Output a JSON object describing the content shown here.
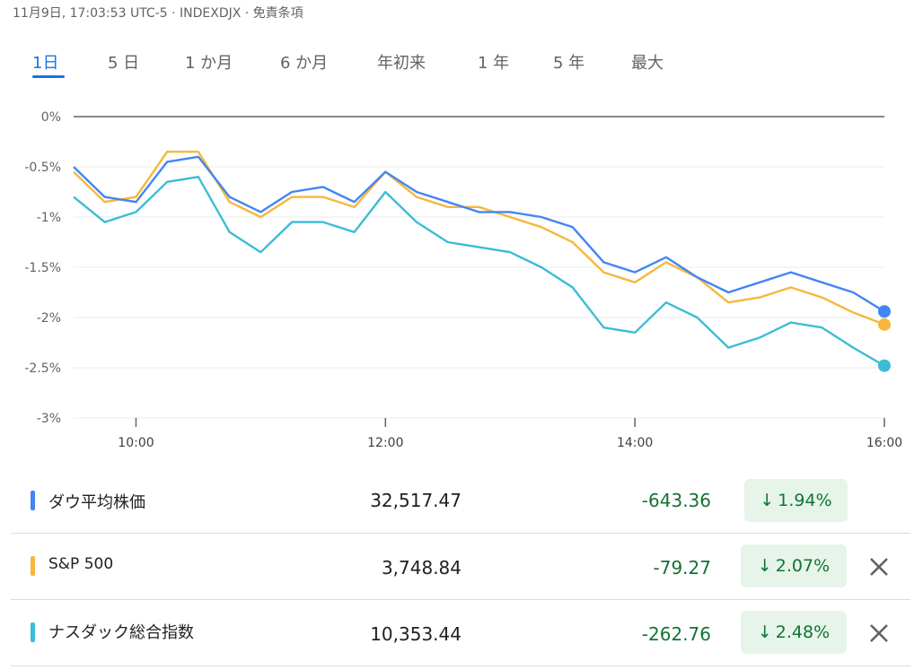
{
  "header": {
    "text": "11月9日, 17:03:53 UTC-5 · INDEXDJX · 免責条項"
  },
  "tabs": [
    {
      "label": "1日",
      "active": true
    },
    {
      "label": "5 日"
    },
    {
      "label": "1 か月"
    },
    {
      "label": "6 か月"
    },
    {
      "label": "年初来"
    },
    {
      "label": "1 年"
    },
    {
      "label": "5 年"
    },
    {
      "label": "最大"
    }
  ],
  "chart_data": {
    "type": "line",
    "y_ticks": [
      "0%",
      "-0.5%",
      "-1%",
      "-1.5%",
      "-2%",
      "-2.5%",
      "-3%"
    ],
    "ylim": [
      -3,
      0
    ],
    "x_ticks": [
      "10:00",
      "12:00",
      "14:00",
      "16:00"
    ],
    "xlim": [
      "09:30",
      "16:00"
    ],
    "grid": true,
    "series": [
      {
        "name": "ダウ平均株価",
        "color": "#4285f4",
        "x": [
          "09:30",
          "09:45",
          "10:00",
          "10:15",
          "10:30",
          "10:45",
          "11:00",
          "11:15",
          "11:30",
          "11:45",
          "12:00",
          "12:15",
          "12:30",
          "12:45",
          "13:00",
          "13:15",
          "13:30",
          "13:45",
          "14:00",
          "14:15",
          "14:30",
          "14:45",
          "15:00",
          "15:15",
          "15:30",
          "15:45",
          "16:00"
        ],
        "y": [
          -0.5,
          -0.8,
          -0.85,
          -0.45,
          -0.4,
          -0.8,
          -0.95,
          -0.75,
          -0.7,
          -0.85,
          -0.55,
          -0.75,
          -0.85,
          -0.95,
          -0.95,
          -1.0,
          -1.1,
          -1.45,
          -1.55,
          -1.4,
          -1.6,
          -1.75,
          -1.65,
          -1.55,
          -1.65,
          -1.75,
          -1.94
        ]
      },
      {
        "name": "S&P 500",
        "color": "#f6b73c",
        "x": [
          "09:30",
          "09:45",
          "10:00",
          "10:15",
          "10:30",
          "10:45",
          "11:00",
          "11:15",
          "11:30",
          "11:45",
          "12:00",
          "12:15",
          "12:30",
          "12:45",
          "13:00",
          "13:15",
          "13:30",
          "13:45",
          "14:00",
          "14:15",
          "14:30",
          "14:45",
          "15:00",
          "15:15",
          "15:30",
          "15:45",
          "16:00"
        ],
        "y": [
          -0.55,
          -0.85,
          -0.8,
          -0.35,
          -0.35,
          -0.85,
          -1.0,
          -0.8,
          -0.8,
          -0.9,
          -0.55,
          -0.8,
          -0.9,
          -0.9,
          -1.0,
          -1.1,
          -1.25,
          -1.55,
          -1.65,
          -1.45,
          -1.6,
          -1.85,
          -1.8,
          -1.7,
          -1.8,
          -1.95,
          -2.07
        ]
      },
      {
        "name": "ナスダック総合指数",
        "color": "#3cbcd6",
        "x": [
          "09:30",
          "09:45",
          "10:00",
          "10:15",
          "10:30",
          "10:45",
          "11:00",
          "11:15",
          "11:30",
          "11:45",
          "12:00",
          "12:15",
          "12:30",
          "12:45",
          "13:00",
          "13:15",
          "13:30",
          "13:45",
          "14:00",
          "14:15",
          "14:30",
          "14:45",
          "15:00",
          "15:15",
          "15:30",
          "15:45",
          "16:00"
        ],
        "y": [
          -0.8,
          -1.05,
          -0.95,
          -0.65,
          -0.6,
          -1.15,
          -1.35,
          -1.05,
          -1.05,
          -1.15,
          -0.75,
          -1.05,
          -1.25,
          -1.3,
          -1.35,
          -1.5,
          -1.7,
          -2.1,
          -2.15,
          -1.85,
          -2.0,
          -2.3,
          -2.2,
          -2.05,
          -2.1,
          -2.3,
          -2.48
        ]
      }
    ]
  },
  "table": [
    {
      "name": "ダウ平均株価",
      "price": "32,517.47",
      "change": "-643.36",
      "pct": "1.94%",
      "color": "#4285f4",
      "removable": false
    },
    {
      "name": "S&P 500",
      "price": "3,748.84",
      "change": "-79.27",
      "pct": "2.07%",
      "color": "#f6b73c",
      "removable": true
    },
    {
      "name": "ナスダック総合指数",
      "price": "10,353.44",
      "change": "-262.76",
      "pct": "2.48%",
      "color": "#3cbcd6",
      "removable": true
    }
  ],
  "icons": {
    "arrow": "arrow-down-icon",
    "close": "close-icon"
  }
}
